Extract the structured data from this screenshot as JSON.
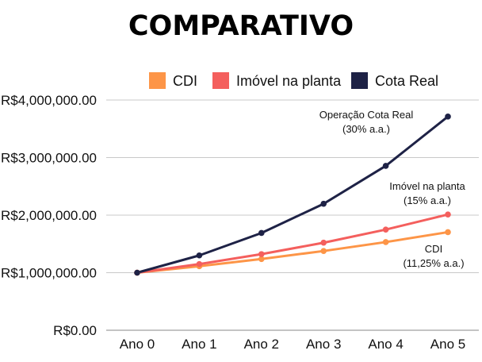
{
  "chart_data": {
    "type": "line",
    "title": "COMPARATIVO",
    "categories": [
      "Ano 0",
      "Ano 1",
      "Ano 2",
      "Ano 3",
      "Ano 4",
      "Ano 5"
    ],
    "ylim": [
      0,
      4000000
    ],
    "yticks": [
      0,
      1000000,
      2000000,
      3000000,
      4000000
    ],
    "ytick_labels": [
      "R$0.00",
      "R$1,000,000.00",
      "R$2,000,000.00",
      "R$3,000,000.00",
      "R$4,000,000.00"
    ],
    "grid": true,
    "legend_position": "top",
    "series": [
      {
        "name": "CDI",
        "color": "#FD9547",
        "values": [
          1000000,
          1112500,
          1237656,
          1376893,
          1531794,
          1704121
        ]
      },
      {
        "name": "Imóvel na planta",
        "color": "#F45F5D",
        "values": [
          1000000,
          1150000,
          1322500,
          1520875,
          1749006,
          2011357
        ]
      },
      {
        "name": "Cota Real",
        "color": "#1E2246",
        "values": [
          1000000,
          1300000,
          1690000,
          2197000,
          2856100,
          3712930
        ]
      }
    ],
    "annotations": [
      {
        "series": "Cota Real",
        "lines": [
          "Operação Cota Real",
          "(30% a.a.)"
        ]
      },
      {
        "series": "Imóvel na planta",
        "lines": [
          "Imóvel na planta",
          "(15% a.a.)"
        ]
      },
      {
        "series": "CDI",
        "lines": [
          "CDI",
          "(11,25% a.a.)"
        ]
      }
    ]
  }
}
